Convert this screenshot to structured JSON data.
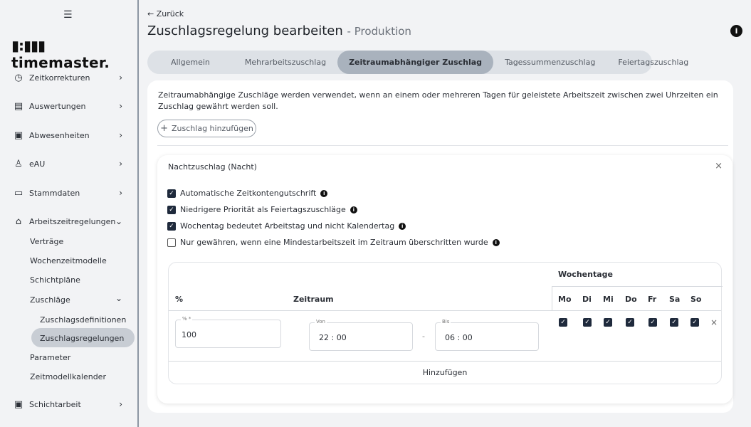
{
  "sidebar": {
    "logo": "timemaster.",
    "items": [
      {
        "label": "Zeitkorrekturen",
        "icon": "clock-icon"
      },
      {
        "label": "Auswertungen",
        "icon": "chart-icon"
      },
      {
        "label": "Abwesenheiten",
        "icon": "calendar-x-icon"
      },
      {
        "label": "eAU",
        "icon": "person-icon"
      },
      {
        "label": "Stammdaten",
        "icon": "folder-icon"
      },
      {
        "label": "Arbeitszeitregelungen",
        "icon": "briefcase-clock-icon"
      },
      {
        "label": "Schichtarbeit",
        "icon": "calendar-check-icon"
      }
    ],
    "sub": [
      "Verträge",
      "Wochenzeitmodelle",
      "Schichtpläne",
      "Zuschläge",
      "Parameter",
      "Zeitmodellkalender"
    ],
    "subsub": [
      "Zuschlagsdefinitionen",
      "Zuschlagsregelungen"
    ]
  },
  "header": {
    "back": "Zurück",
    "title": "Zuschlagsregelung bearbeiten",
    "subtitle": "- Produktion"
  },
  "tabs": [
    "Allgemein",
    "Mehrarbeitszuschlag",
    "Zeitraumabhängiger Zuschlag",
    "Tagessummenzuschlag",
    "Feiertagszuschlag"
  ],
  "content": {
    "description": "Zeitraumabhängige Zuschläge werden verwendet, wenn an einem oder mehreren Tagen für geleistete Arbeitszeit zwischen zwei Uhrzeiten ein Zuschlag gewährt werden soll.",
    "add_button": "Zuschlag hinzufügen",
    "rule": {
      "title": "Nachtzuschlag (Nacht)",
      "options": [
        {
          "label": "Automatische Zeitkontengutschrift",
          "checked": true
        },
        {
          "label": "Niedrigere Priorität als Feiertagszuschläge",
          "checked": true
        },
        {
          "label": "Wochentag bedeutet Arbeitstag und nicht Kalendertag",
          "checked": true
        },
        {
          "label": "Nur gewähren, wenn eine Mindestarbeitszeit im Zeitraum überschritten wurde",
          "checked": false
        }
      ],
      "table": {
        "col_percent": "%",
        "col_range": "Zeitraum",
        "col_weekdays": "Wochentage",
        "days": [
          "Mo",
          "Di",
          "Mi",
          "Do",
          "Fr",
          "Sa",
          "So"
        ],
        "row": {
          "percent_label": "% *",
          "percent": "100",
          "from_label": "Von",
          "from": "22 : 00",
          "sep": "-",
          "to_label": "Bis",
          "to": "06 : 00",
          "days_checked": [
            true,
            true,
            true,
            true,
            true,
            true,
            true
          ]
        },
        "add": "Hinzufügen"
      }
    }
  }
}
